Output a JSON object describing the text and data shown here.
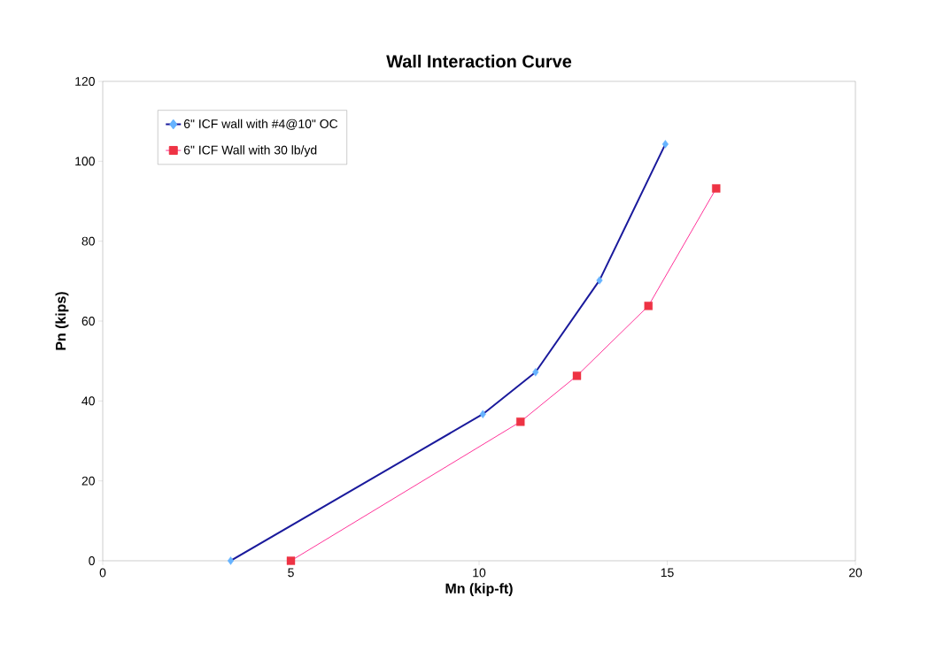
{
  "chart_data": {
    "type": "line",
    "title": "Wall Interaction Curve",
    "xlabel": "Mn (kip-ft)",
    "ylabel": "Pn (kips)",
    "series": [
      {
        "name": "6\" ICF wall with #4@10\" OC",
        "color": "#1a1a9c",
        "colors": [
          "#66b3ff",
          "#66b3ff",
          "#66b3ff",
          "#66b3ff",
          "#66b3ff"
        ],
        "marker": "diamond",
        "x": [
          3.4,
          10.1,
          11.5,
          13.2,
          14.95
        ],
        "values": [
          0,
          36.7,
          47.2,
          70.2,
          104.3
        ]
      },
      {
        "name": "6\" ICF Wall with 30 lb/yd",
        "color": "#ff3399",
        "colors": [
          "#ee3344",
          "#ee3344",
          "#ee3344",
          "#ee3344",
          "#ee3344"
        ],
        "marker": "square",
        "x": [
          5.0,
          11.1,
          12.6,
          14.5,
          16.3
        ],
        "values": [
          0,
          34.8,
          46.3,
          63.8,
          93.2
        ]
      }
    ],
    "xlim": [
      0,
      20
    ],
    "ylim": [
      0,
      120
    ],
    "xticks": [
      0,
      5,
      10,
      15,
      20
    ],
    "yticks": [
      0,
      20,
      40,
      60,
      80,
      100,
      120
    ],
    "grid": false,
    "legend": "top left",
    "line_style": "solid"
  }
}
